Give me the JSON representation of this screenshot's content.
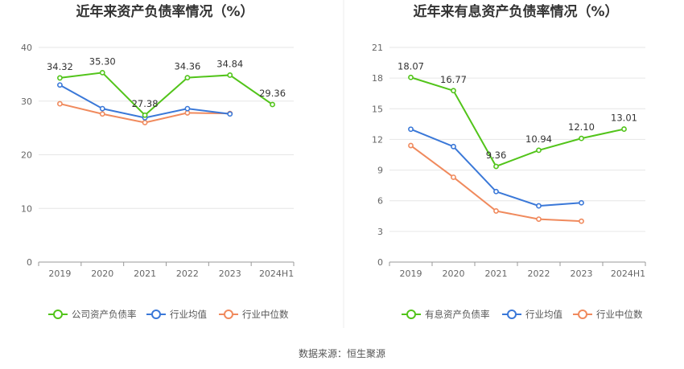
{
  "source_label": "数据来源：恒生聚源",
  "colors": {
    "company": "#52c41a",
    "industry_avg": "#3a78d8",
    "industry_median": "#f08a5d",
    "grid": "#e6e6e6",
    "axis": "#999999",
    "divider": "#eeeeee"
  },
  "chart_data": [
    {
      "type": "line",
      "title": "近年来资产负债率情况（%）",
      "categories": [
        "2019",
        "2020",
        "2021",
        "2022",
        "2023",
        "2024H1"
      ],
      "ylim": [
        0,
        40
      ],
      "yticks": [
        0,
        10,
        20,
        30,
        40
      ],
      "grid": true,
      "legend_position": "bottom",
      "series": [
        {
          "name": "公司资产负债率",
          "color_key": "company",
          "values": [
            34.32,
            35.3,
            27.38,
            34.36,
            34.84,
            29.36
          ],
          "labels": [
            "34.32",
            "35.30",
            "27.38",
            "34.36",
            "34.84",
            "29.36"
          ]
        },
        {
          "name": "行业均值",
          "color_key": "industry_avg",
          "values": [
            33.0,
            28.6,
            26.9,
            28.6,
            27.6,
            null
          ]
        },
        {
          "name": "行业中位数",
          "color_key": "industry_median",
          "values": [
            29.5,
            27.6,
            26.0,
            27.8,
            27.7,
            null
          ]
        }
      ]
    },
    {
      "type": "line",
      "title": "近年来有息资产负债率情况（%）",
      "categories": [
        "2019",
        "2020",
        "2021",
        "2022",
        "2023",
        "2024H1"
      ],
      "ylim": [
        0,
        21
      ],
      "yticks": [
        0,
        3,
        6,
        9,
        12,
        15,
        18,
        21
      ],
      "grid": true,
      "legend_position": "bottom",
      "series": [
        {
          "name": "有息资产负债率",
          "color_key": "company",
          "values": [
            18.07,
            16.77,
            9.36,
            10.94,
            12.1,
            13.01
          ],
          "labels": [
            "18.07",
            "16.77",
            "9.36",
            "10.94",
            "12.10",
            "13.01"
          ]
        },
        {
          "name": "行业均值",
          "color_key": "industry_avg",
          "values": [
            13.0,
            11.3,
            6.9,
            5.5,
            5.8,
            null
          ]
        },
        {
          "name": "行业中位数",
          "color_key": "industry_median",
          "values": [
            11.4,
            8.3,
            5.0,
            4.2,
            4.0,
            null
          ]
        }
      ]
    }
  ]
}
